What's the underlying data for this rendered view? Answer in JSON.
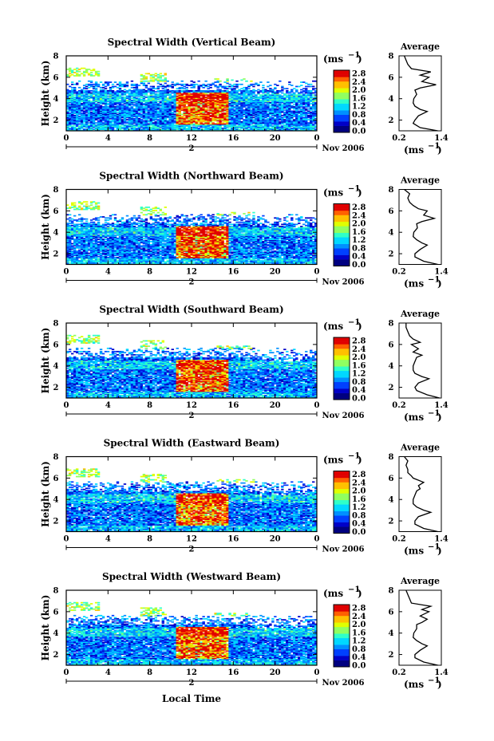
{
  "x_axis_label": "Local Time",
  "month_label": "Nov 2006",
  "day_label": "2",
  "colorbar_unit": "(ms",
  "colorbar_unit_exp": "−1",
  "colorbar_ticks": [
    "2.8",
    "2.4",
    "2.0",
    "1.6",
    "1.2",
    "0.8",
    "0.4",
    "0.0"
  ],
  "colormap": [
    "#000080",
    "#0000c8",
    "#0040ff",
    "#0090ff",
    "#00d8ff",
    "#30ffc8",
    "#90ff60",
    "#e0ff00",
    "#ffc000",
    "#ff6000",
    "#e00000"
  ],
  "avg_title": "Average",
  "avg_unit": "(ms",
  "avg_unit_exp": "−1",
  "chart_data": [
    {
      "type": "heatmap",
      "title": "Spectral Width (Vertical Beam)",
      "ylabel": "Height (km)",
      "xlim": [
        0,
        24
      ],
      "ylim": [
        1,
        8
      ],
      "x_ticks": [
        "0",
        "4",
        "8",
        "12",
        "16",
        "20",
        "0"
      ],
      "y_ticks": [
        "8",
        "6",
        "4",
        "2"
      ],
      "zlim": [
        0.0,
        2.8
      ],
      "avg_profile": {
        "height_km": [
          1.0,
          1.3,
          1.7,
          2.0,
          2.4,
          2.8,
          3.0,
          3.3,
          3.6,
          4.0,
          4.4,
          4.8,
          5.0,
          5.3,
          5.6,
          6.0,
          6.2,
          6.5,
          6.8,
          7.2,
          7.6,
          8.0
        ],
        "width": [
          1.3,
          0.8,
          0.6,
          0.65,
          0.75,
          1.0,
          0.8,
          0.65,
          0.6,
          0.62,
          0.7,
          0.65,
          0.8,
          1.25,
          0.85,
          1.05,
          0.8,
          1.1,
          0.55,
          0.45,
          0.4,
          0.35
        ],
        "xlim": [
          0.2,
          1.4
        ],
        "ylim": [
          1,
          8
        ],
        "x_ticks": [
          "0.2",
          "1.4"
        ],
        "y_ticks": [
          "8",
          "6",
          "4",
          "2"
        ]
      }
    },
    {
      "type": "heatmap",
      "title": "Spectral Width (Northward Beam)",
      "ylabel": "Height (km)",
      "xlim": [
        0,
        24
      ],
      "ylim": [
        1,
        8
      ],
      "x_ticks": [
        "0",
        "4",
        "8",
        "12",
        "16",
        "20",
        "0"
      ],
      "y_ticks": [
        "8",
        "6",
        "4",
        "2"
      ],
      "zlim": [
        0.0,
        2.8
      ],
      "avg_profile": {
        "height_km": [
          1.0,
          1.3,
          1.7,
          2.0,
          2.4,
          2.8,
          3.0,
          3.3,
          3.6,
          4.0,
          4.4,
          4.8,
          5.0,
          5.3,
          5.6,
          6.0,
          6.2,
          6.5,
          6.8,
          7.2,
          7.6,
          8.0
        ],
        "width": [
          1.3,
          0.9,
          0.65,
          0.65,
          0.8,
          1.0,
          0.85,
          0.7,
          0.6,
          0.62,
          0.72,
          0.7,
          0.85,
          1.2,
          0.9,
          1.0,
          0.75,
          0.6,
          0.5,
          0.45,
          0.5,
          0.35
        ],
        "xlim": [
          0.2,
          1.4
        ],
        "ylim": [
          1,
          8
        ],
        "x_ticks": [
          "0.2",
          "1.4"
        ],
        "y_ticks": [
          "8",
          "6",
          "4",
          "2"
        ]
      }
    },
    {
      "type": "heatmap",
      "title": "Spectral Width (Southward Beam)",
      "ylabel": "Height (km)",
      "xlim": [
        0,
        24
      ],
      "ylim": [
        1,
        8
      ],
      "x_ticks": [
        "0",
        "4",
        "8",
        "12",
        "16",
        "20",
        "0"
      ],
      "y_ticks": [
        "8",
        "6",
        "4",
        "2"
      ],
      "zlim": [
        0.0,
        2.8
      ],
      "avg_profile": {
        "height_km": [
          1.0,
          1.3,
          1.7,
          2.0,
          2.4,
          2.8,
          3.0,
          3.3,
          3.6,
          4.0,
          4.4,
          4.8,
          5.0,
          5.3,
          5.6,
          6.0,
          6.2,
          6.5,
          6.8,
          7.2,
          7.6,
          8.0
        ],
        "width": [
          1.35,
          1.0,
          0.7,
          0.65,
          0.75,
          1.05,
          0.85,
          0.65,
          0.6,
          0.6,
          0.65,
          0.7,
          0.85,
          0.6,
          0.75,
          0.55,
          0.8,
          0.6,
          0.5,
          0.45,
          0.4,
          0.4
        ],
        "xlim": [
          0.2,
          1.4
        ],
        "ylim": [
          1,
          8
        ],
        "x_ticks": [
          "0.2",
          "1.4"
        ],
        "y_ticks": [
          "8",
          "6",
          "4",
          "2"
        ]
      }
    },
    {
      "type": "heatmap",
      "title": "Spectral Width (Eastward Beam)",
      "ylabel": "Height (km)",
      "xlim": [
        0,
        24
      ],
      "ylim": [
        1,
        8
      ],
      "x_ticks": [
        "0",
        "4",
        "8",
        "12",
        "16",
        "20",
        "0"
      ],
      "y_ticks": [
        "8",
        "6",
        "4",
        "2"
      ],
      "zlim": [
        0.0,
        2.8
      ],
      "avg_profile": {
        "height_km": [
          1.0,
          1.3,
          1.7,
          2.0,
          2.4,
          2.8,
          3.0,
          3.3,
          3.6,
          4.0,
          4.4,
          4.8,
          5.0,
          5.3,
          5.6,
          6.0,
          6.2,
          6.5,
          6.8,
          7.2,
          7.6,
          8.0
        ],
        "width": [
          1.3,
          0.9,
          0.65,
          0.65,
          0.75,
          1.1,
          0.9,
          0.7,
          0.6,
          0.6,
          0.65,
          0.7,
          0.8,
          0.75,
          0.9,
          0.6,
          0.55,
          0.45,
          0.45,
          0.4,
          0.45,
          0.35
        ],
        "xlim": [
          0.2,
          1.4
        ],
        "ylim": [
          1,
          8
        ],
        "x_ticks": [
          "0.2",
          "1.4"
        ],
        "y_ticks": [
          "8",
          "6",
          "4",
          "2"
        ]
      }
    },
    {
      "type": "heatmap",
      "title": "Spectral Width (Westward Beam)",
      "ylabel": "Height (km)",
      "xlim": [
        0,
        24
      ],
      "ylim": [
        1,
        8
      ],
      "x_ticks": [
        "0",
        "4",
        "8",
        "12",
        "16",
        "20",
        "0"
      ],
      "y_ticks": [
        "8",
        "6",
        "4",
        "2"
      ],
      "zlim": [
        0.0,
        2.8
      ],
      "avg_profile": {
        "height_km": [
          1.0,
          1.3,
          1.7,
          2.0,
          2.4,
          2.8,
          3.0,
          3.3,
          3.6,
          4.0,
          4.4,
          4.8,
          5.0,
          5.3,
          5.6,
          6.0,
          6.2,
          6.5,
          6.8,
          7.2,
          7.6,
          8.0
        ],
        "width": [
          1.3,
          0.9,
          0.65,
          0.65,
          0.8,
          1.0,
          0.85,
          0.7,
          0.6,
          0.62,
          0.7,
          0.7,
          0.85,
          1.0,
          0.8,
          1.05,
          0.85,
          1.1,
          0.55,
          0.5,
          0.45,
          0.4
        ],
        "xlim": [
          0.2,
          1.4
        ],
        "ylim": [
          1,
          8
        ],
        "x_ticks": [
          "0.2",
          "1.4"
        ],
        "y_ticks": [
          "8",
          "6",
          "4",
          "2"
        ]
      }
    }
  ]
}
